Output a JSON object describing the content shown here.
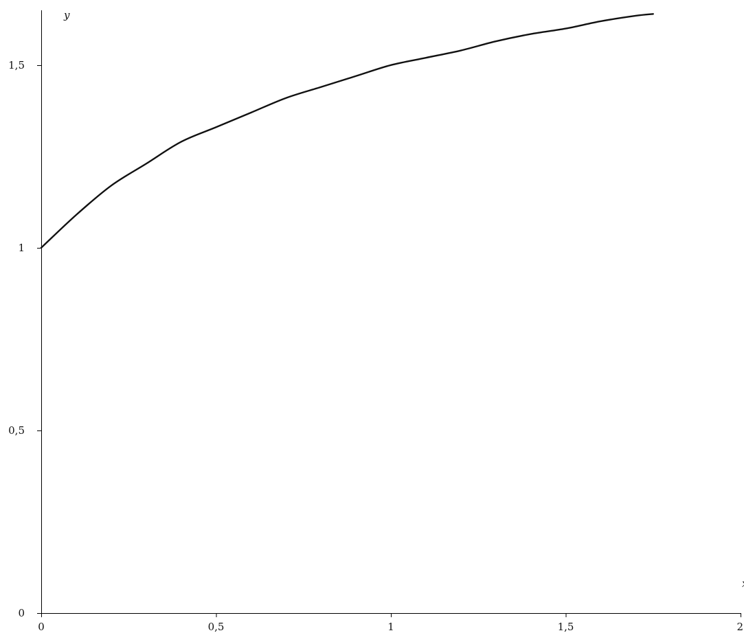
{
  "chart_data": {
    "type": "line",
    "title": "",
    "xlabel": "x",
    "ylabel": "y",
    "xlim": [
      0,
      2
    ],
    "ylim": [
      0,
      1.65
    ],
    "grid": false,
    "x_ticks": [
      {
        "value": 0,
        "label": "0"
      },
      {
        "value": 0.5,
        "label": "0,5"
      },
      {
        "value": 1,
        "label": "1"
      },
      {
        "value": 1.5,
        "label": "1,5"
      },
      {
        "value": 2,
        "label": "2"
      }
    ],
    "y_ticks": [
      {
        "value": 0,
        "label": "0"
      },
      {
        "value": 0.5,
        "label": "0,5"
      },
      {
        "value": 1,
        "label": "1"
      },
      {
        "value": 1.5,
        "label": "1,5"
      }
    ],
    "series": [
      {
        "color": "#111111",
        "x": [
          0,
          0.1,
          0.2,
          0.3,
          0.4,
          0.5,
          0.6,
          0.7,
          0.8,
          0.9,
          1.0,
          1.1,
          1.2,
          1.3,
          1.4,
          1.5,
          1.6,
          1.7,
          1.75
        ],
        "y": [
          1.0,
          1.09,
          1.17,
          1.23,
          1.29,
          1.33,
          1.37,
          1.41,
          1.44,
          1.47,
          1.5,
          1.52,
          1.54,
          1.565,
          1.585,
          1.6,
          1.62,
          1.635,
          1.64
        ]
      }
    ]
  }
}
